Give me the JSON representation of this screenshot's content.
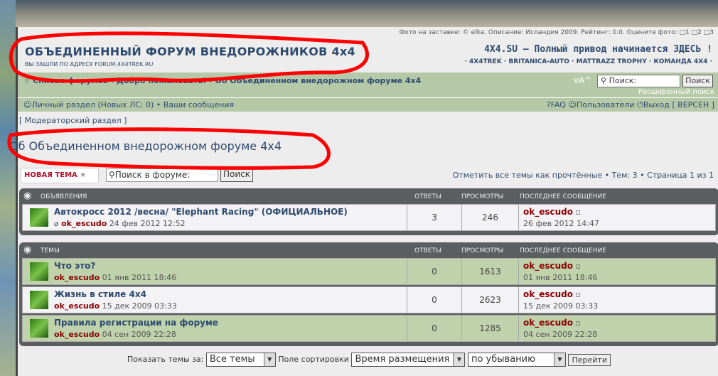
{
  "header": {
    "photo_caption": "Фото на заставке: © elka. Описание: Исландия 2009. Рейтинг: 0.0. Оцените фото: □1 □2 □3",
    "title": "ОБЪЕДИНЕННЫЙ ФОРУМ ВНЕДОРОЖНИКОВ 4x4",
    "subtitle": "ВЫ ЗАШЛИ ПО АДРЕСУ FORUM.4X4TREK.RU",
    "slogan": "4X4.SU — Полный привод начинается ЗДЕСЬ !",
    "links": "· 4X4TREK · BRITANICA-AUTO · MATTRAZZ TROPHY · КОМАНДА 4X4 ·"
  },
  "nav": {
    "breadcrumb": "Список форумов ‹ Добро пожаловать! ‹ Об Объединенном внедорожном форуме 4x4",
    "font_size": "vA^",
    "search_placeholder": "Поиск:",
    "search_button": "Поиск",
    "advanced_search": "Расширенный поиск"
  },
  "userbar": {
    "personal": "Личный раздел (Новых ЛС: 0) • Ваши сообщения",
    "faq": "FAQ",
    "users": "Пользователи",
    "logout": "Выход [ ВЕРСЕН ]"
  },
  "moderator": "[ Модераторский раздел ]",
  "forum_title": "Об Объединенном внедорожном форуме 4x4",
  "new_topic": "НОВАЯ ТЕМА",
  "forum_search": {
    "placeholder": "Поиск в форуме:",
    "button": "Поиск"
  },
  "pagination": "Отметить все темы как прочтённые • Тем: 3 • Страница 1 из 1",
  "columns": {
    "replies": "ОТВЕТЫ",
    "views": "ПРОСМОТРЫ",
    "last": "ПОСЛЕДНЕЕ СООБЩЕНИЕ"
  },
  "announcements": {
    "label": "ОБЪЯВЛЕНИЯ",
    "rows": [
      {
        "title": "Автокросс 2012 /весна/ \"Elephant Racing\" (ОФИЦИАЛЬНОЕ)",
        "author": "ok_escudo",
        "date": "24 фев 2012 12:52",
        "replies": "3",
        "views": "246",
        "last_author": "ok_escudo",
        "last_date": "26 фев 2012 14:47"
      }
    ]
  },
  "topics": {
    "label": "ТЕМЫ",
    "rows": [
      {
        "title": "Что это?",
        "author": "ok_escudo",
        "date": "01 янв 2011 18:46",
        "replies": "0",
        "views": "1613",
        "last_author": "ok_escudo",
        "last_date": "01 янв 2011 18:46"
      },
      {
        "title": "Жизнь в стиле 4x4",
        "author": "ok_escudo",
        "date": "15 дек 2009 03:33",
        "replies": "0",
        "views": "2623",
        "last_author": "ok_escudo",
        "last_date": "15 дек 2009 03:33"
      },
      {
        "title": "Правила регистрации на форуме",
        "author": "ok_escudo",
        "date": "04 сен 2009 22:28",
        "replies": "0",
        "views": "1285",
        "last_author": "ok_escudo",
        "last_date": "04 сен 2009 22:28"
      }
    ]
  },
  "bottom": {
    "show_label": "Показать темы за:",
    "show_value": "Все темы",
    "sort_label": "Поле сортировки",
    "sort_value": "Время размещения",
    "order_value": "по убыванию",
    "go": "Перейти"
  },
  "colors": {
    "nav_green": "#b5c9a8",
    "title_blue": "#2e4a6e",
    "author_red": "#8b0000",
    "annotation_red": "#ff0000"
  }
}
